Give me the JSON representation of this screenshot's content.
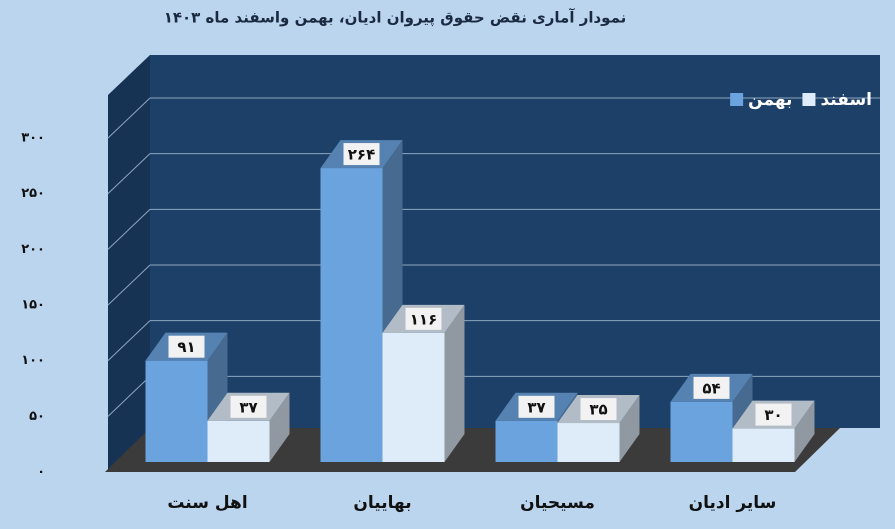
{
  "chart_data": {
    "type": "bar3d",
    "title": "نمودار آماری نقض حقوق پیروان ادیان، بهمن واسفند ماه ۱۴۰۳",
    "categories": [
      "اهل سنت",
      "بهاییان",
      "مسیحیان",
      "سایر ادیان"
    ],
    "series": [
      {
        "name": "بهمن",
        "color": "#6ba3de",
        "values": [
          91,
          264,
          37,
          54
        ],
        "value_labels": [
          "۹۱",
          "۲۶۴",
          "۳۷",
          "۵۴"
        ]
      },
      {
        "name": "اسفند",
        "color": "#deebf8",
        "values": [
          37,
          116,
          35,
          30
        ],
        "value_labels": [
          "۳۷",
          "۱۱۶",
          "۳۵",
          "۳۰"
        ]
      }
    ],
    "ylim": [
      0,
      300
    ],
    "yticks": [
      {
        "value": 0,
        "label": "۰"
      },
      {
        "value": 50,
        "label": "۵۰"
      },
      {
        "value": 100,
        "label": "۱۰۰"
      },
      {
        "value": 150,
        "label": "۱۵۰"
      },
      {
        "value": 200,
        "label": "۲۰۰"
      },
      {
        "value": 250,
        "label": "۲۵۰"
      },
      {
        "value": 300,
        "label": "۳۰۰"
      }
    ],
    "grid": true,
    "legend": "top-right"
  }
}
